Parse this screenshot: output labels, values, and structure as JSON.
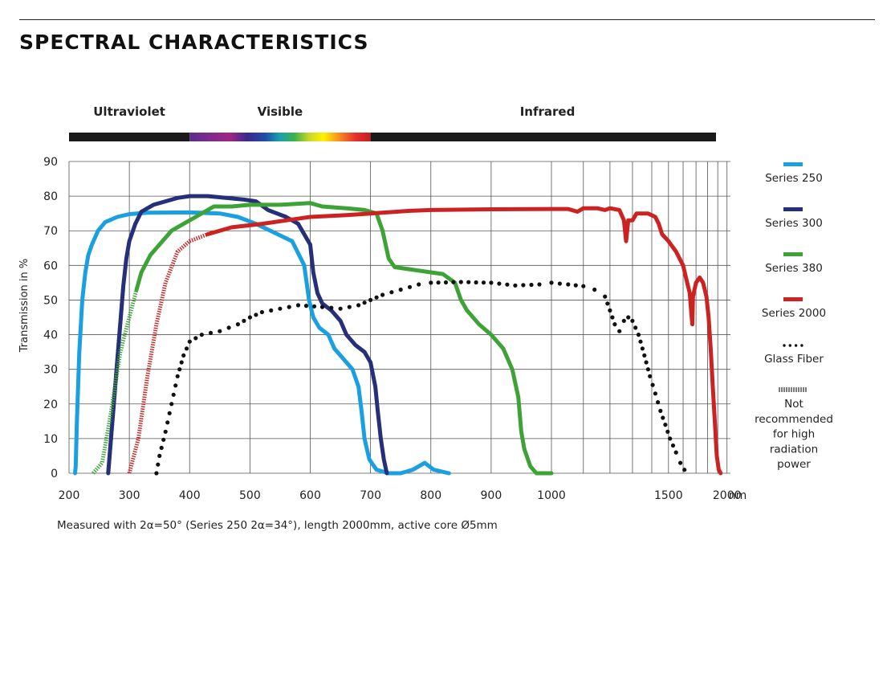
{
  "page": {
    "title": "SPECTRAL CHARACTERISTICS",
    "footnote": "Measured with 2α=50° (Series 250 2α=34°), length 2000mm, active core Ø5mm"
  },
  "chart_data": {
    "type": "line",
    "title": "SPECTRAL CHARACTERISTICS",
    "ylabel": "Transmission in %",
    "xunit": "nm",
    "ylim": [
      0,
      90
    ],
    "yticks": [
      0,
      10,
      20,
      30,
      40,
      50,
      60,
      70,
      80,
      90
    ],
    "xticks": [
      200,
      300,
      400,
      500,
      600,
      700,
      800,
      900,
      1000,
      1500,
      2000
    ],
    "x_scale": "piecewise: linear 200–1000 nm, compressed reciprocal 1000–2000 nm",
    "grid": true,
    "legend_position": "right",
    "bands": [
      {
        "label": "Ultraviolet",
        "range": [
          200,
          400
        ]
      },
      {
        "label": "Visible",
        "range": [
          400,
          700
        ]
      },
      {
        "label": "Infrared",
        "range": [
          700,
          2040
        ]
      }
    ],
    "spectrum_bar": {
      "segments": [
        {
          "from": 200,
          "to": 400,
          "color": "#1a1a1a"
        },
        {
          "from": 400,
          "to": 700,
          "color": "spectrum"
        },
        {
          "from": 700,
          "to": 2040,
          "color": "#1a1a1a"
        }
      ]
    },
    "series": [
      {
        "name": "Series 250",
        "color": "#1aa0e0",
        "style": "solid",
        "not_recommended": [],
        "points": [
          [
            210,
            0
          ],
          [
            211,
            2
          ],
          [
            213,
            15
          ],
          [
            217,
            35
          ],
          [
            222,
            50
          ],
          [
            227,
            58
          ],
          [
            232,
            63
          ],
          [
            238,
            66
          ],
          [
            248,
            70
          ],
          [
            260,
            72.5
          ],
          [
            280,
            74
          ],
          [
            300,
            74.8
          ],
          [
            330,
            75.2
          ],
          [
            400,
            75.3
          ],
          [
            450,
            75
          ],
          [
            480,
            74
          ],
          [
            510,
            72
          ],
          [
            540,
            69.5
          ],
          [
            570,
            67
          ],
          [
            590,
            60
          ],
          [
            598,
            50
          ],
          [
            605,
            45
          ],
          [
            615,
            42
          ],
          [
            630,
            40
          ],
          [
            640,
            36
          ],
          [
            655,
            33
          ],
          [
            670,
            30
          ],
          [
            680,
            25
          ],
          [
            685,
            18
          ],
          [
            690,
            10
          ],
          [
            698,
            4
          ],
          [
            710,
            1
          ],
          [
            730,
            0
          ],
          [
            750,
            0
          ],
          [
            770,
            1
          ],
          [
            790,
            3
          ],
          [
            805,
            1
          ],
          [
            830,
            0
          ]
        ]
      },
      {
        "name": "Series 300",
        "color": "#26307a",
        "style": "solid",
        "not_recommended": [
          [
            265,
            0
          ],
          [
            290,
            54
          ]
        ],
        "points": [
          [
            265,
            0
          ],
          [
            290,
            54
          ],
          [
            295,
            62
          ],
          [
            300,
            67
          ],
          [
            310,
            72
          ],
          [
            320,
            75.5
          ],
          [
            340,
            77.5
          ],
          [
            360,
            78.5
          ],
          [
            380,
            79.5
          ],
          [
            400,
            80
          ],
          [
            430,
            80
          ],
          [
            460,
            79.5
          ],
          [
            490,
            79
          ],
          [
            510,
            78.5
          ],
          [
            530,
            76
          ],
          [
            560,
            74
          ],
          [
            580,
            72
          ],
          [
            600,
            66
          ],
          [
            605,
            58
          ],
          [
            612,
            52
          ],
          [
            620,
            49
          ],
          [
            635,
            47
          ],
          [
            650,
            44
          ],
          [
            660,
            40
          ],
          [
            675,
            37
          ],
          [
            690,
            35
          ],
          [
            700,
            32
          ],
          [
            708,
            25
          ],
          [
            712,
            18
          ],
          [
            717,
            10
          ],
          [
            722,
            4
          ],
          [
            727,
            0
          ]
        ]
      },
      {
        "name": "Series 380",
        "color": "#3da336",
        "style": "solid",
        "not_recommended": [
          [
            240,
            0
          ],
          [
            255,
            3
          ],
          [
            270,
            18
          ],
          [
            285,
            35
          ],
          [
            300,
            45
          ],
          [
            312,
            53
          ]
        ],
        "points": [
          [
            312,
            53
          ],
          [
            320,
            58
          ],
          [
            335,
            63
          ],
          [
            355,
            67
          ],
          [
            370,
            70
          ],
          [
            390,
            72
          ],
          [
            410,
            74
          ],
          [
            440,
            77
          ],
          [
            470,
            77
          ],
          [
            500,
            77.5
          ],
          [
            550,
            77.5
          ],
          [
            600,
            78
          ],
          [
            620,
            77
          ],
          [
            660,
            76.5
          ],
          [
            690,
            76
          ],
          [
            710,
            75
          ],
          [
            720,
            70
          ],
          [
            730,
            62
          ],
          [
            740,
            59.5
          ],
          [
            760,
            59
          ],
          [
            780,
            58.5
          ],
          [
            800,
            58
          ],
          [
            820,
            57.5
          ],
          [
            840,
            55
          ],
          [
            850,
            50
          ],
          [
            860,
            47
          ],
          [
            880,
            43
          ],
          [
            900,
            40
          ],
          [
            920,
            36
          ],
          [
            935,
            30
          ],
          [
            945,
            22
          ],
          [
            950,
            12
          ],
          [
            955,
            7
          ],
          [
            965,
            2
          ],
          [
            975,
            0
          ],
          [
            1000,
            0
          ]
        ]
      },
      {
        "name": "Series 2000",
        "color": "#cc2222",
        "style": "solid",
        "not_recommended": [
          [
            300,
            0
          ],
          [
            315,
            10
          ],
          [
            330,
            28
          ],
          [
            345,
            43
          ],
          [
            360,
            55
          ],
          [
            380,
            64
          ],
          [
            400,
            67
          ],
          [
            430,
            69
          ]
        ],
        "points": [
          [
            430,
            69
          ],
          [
            470,
            71
          ],
          [
            520,
            72
          ],
          [
            560,
            73
          ],
          [
            600,
            74
          ],
          [
            660,
            74.5
          ],
          [
            700,
            75
          ],
          [
            760,
            75.7
          ],
          [
            800,
            76
          ],
          [
            900,
            76.2
          ],
          [
            1000,
            76.3
          ],
          [
            1050,
            76.3
          ],
          [
            1080,
            75.5
          ],
          [
            1100,
            76.5
          ],
          [
            1150,
            76.5
          ],
          [
            1180,
            76
          ],
          [
            1200,
            76.5
          ],
          [
            1240,
            76
          ],
          [
            1260,
            73
          ],
          [
            1270,
            67
          ],
          [
            1280,
            73
          ],
          [
            1300,
            73
          ],
          [
            1320,
            75
          ],
          [
            1380,
            75
          ],
          [
            1420,
            74
          ],
          [
            1440,
            72
          ],
          [
            1460,
            69
          ],
          [
            1500,
            67
          ],
          [
            1550,
            64
          ],
          [
            1600,
            60
          ],
          [
            1630,
            55
          ],
          [
            1650,
            52
          ],
          [
            1665,
            45
          ],
          [
            1670,
            43
          ],
          [
            1675,
            51
          ],
          [
            1700,
            55
          ],
          [
            1730,
            56.5
          ],
          [
            1760,
            55
          ],
          [
            1790,
            51
          ],
          [
            1810,
            45
          ],
          [
            1830,
            36
          ],
          [
            1850,
            25
          ],
          [
            1870,
            15
          ],
          [
            1890,
            5
          ],
          [
            1910,
            1
          ],
          [
            1930,
            0
          ]
        ]
      },
      {
        "name": "Glass Fiber",
        "color": "#111111",
        "style": "dotted",
        "not_recommended": [],
        "points": [
          [
            345,
            0
          ],
          [
            350,
            5
          ],
          [
            360,
            12
          ],
          [
            370,
            20
          ],
          [
            380,
            28
          ],
          [
            390,
            34
          ],
          [
            400,
            38
          ],
          [
            420,
            40
          ],
          [
            450,
            41
          ],
          [
            480,
            43
          ],
          [
            500,
            45
          ],
          [
            520,
            46.5
          ],
          [
            550,
            47.5
          ],
          [
            580,
            48.5
          ],
          [
            620,
            48
          ],
          [
            650,
            47.5
          ],
          [
            680,
            48.5
          ],
          [
            700,
            50
          ],
          [
            720,
            51.5
          ],
          [
            750,
            53
          ],
          [
            780,
            54.5
          ],
          [
            800,
            55
          ],
          [
            850,
            55.2
          ],
          [
            900,
            55
          ],
          [
            940,
            54.2
          ],
          [
            980,
            54.5
          ],
          [
            1000,
            55
          ],
          [
            1050,
            54.5
          ],
          [
            1100,
            54
          ],
          [
            1140,
            53
          ],
          [
            1180,
            51
          ],
          [
            1200,
            47
          ],
          [
            1220,
            43
          ],
          [
            1240,
            41
          ],
          [
            1260,
            44
          ],
          [
            1280,
            45
          ],
          [
            1300,
            44
          ],
          [
            1330,
            40
          ],
          [
            1360,
            34
          ],
          [
            1390,
            28
          ],
          [
            1420,
            23
          ],
          [
            1450,
            18
          ],
          [
            1480,
            14
          ],
          [
            1510,
            10
          ],
          [
            1550,
            6
          ],
          [
            1580,
            3
          ],
          [
            1610,
            1
          ],
          [
            1640,
            0
          ]
        ]
      }
    ]
  },
  "legend": {
    "items": [
      {
        "label": "Series 250",
        "color": "#1aa0e0",
        "swatch": "bar"
      },
      {
        "label": "Series 300",
        "color": "#26307a",
        "swatch": "bar"
      },
      {
        "label": "Series 380",
        "color": "#3da336",
        "swatch": "bar"
      },
      {
        "label": "Series 2000",
        "color": "#cc2222",
        "swatch": "bar"
      },
      {
        "label": "Glass Fiber",
        "color": "#111111",
        "swatch": "dots"
      },
      {
        "label": "Not recommended for high radiation power",
        "lines": [
          "Not",
          "recommended",
          "for high",
          "radiation",
          "power"
        ],
        "color": "#111111",
        "swatch": "hatch"
      }
    ]
  }
}
